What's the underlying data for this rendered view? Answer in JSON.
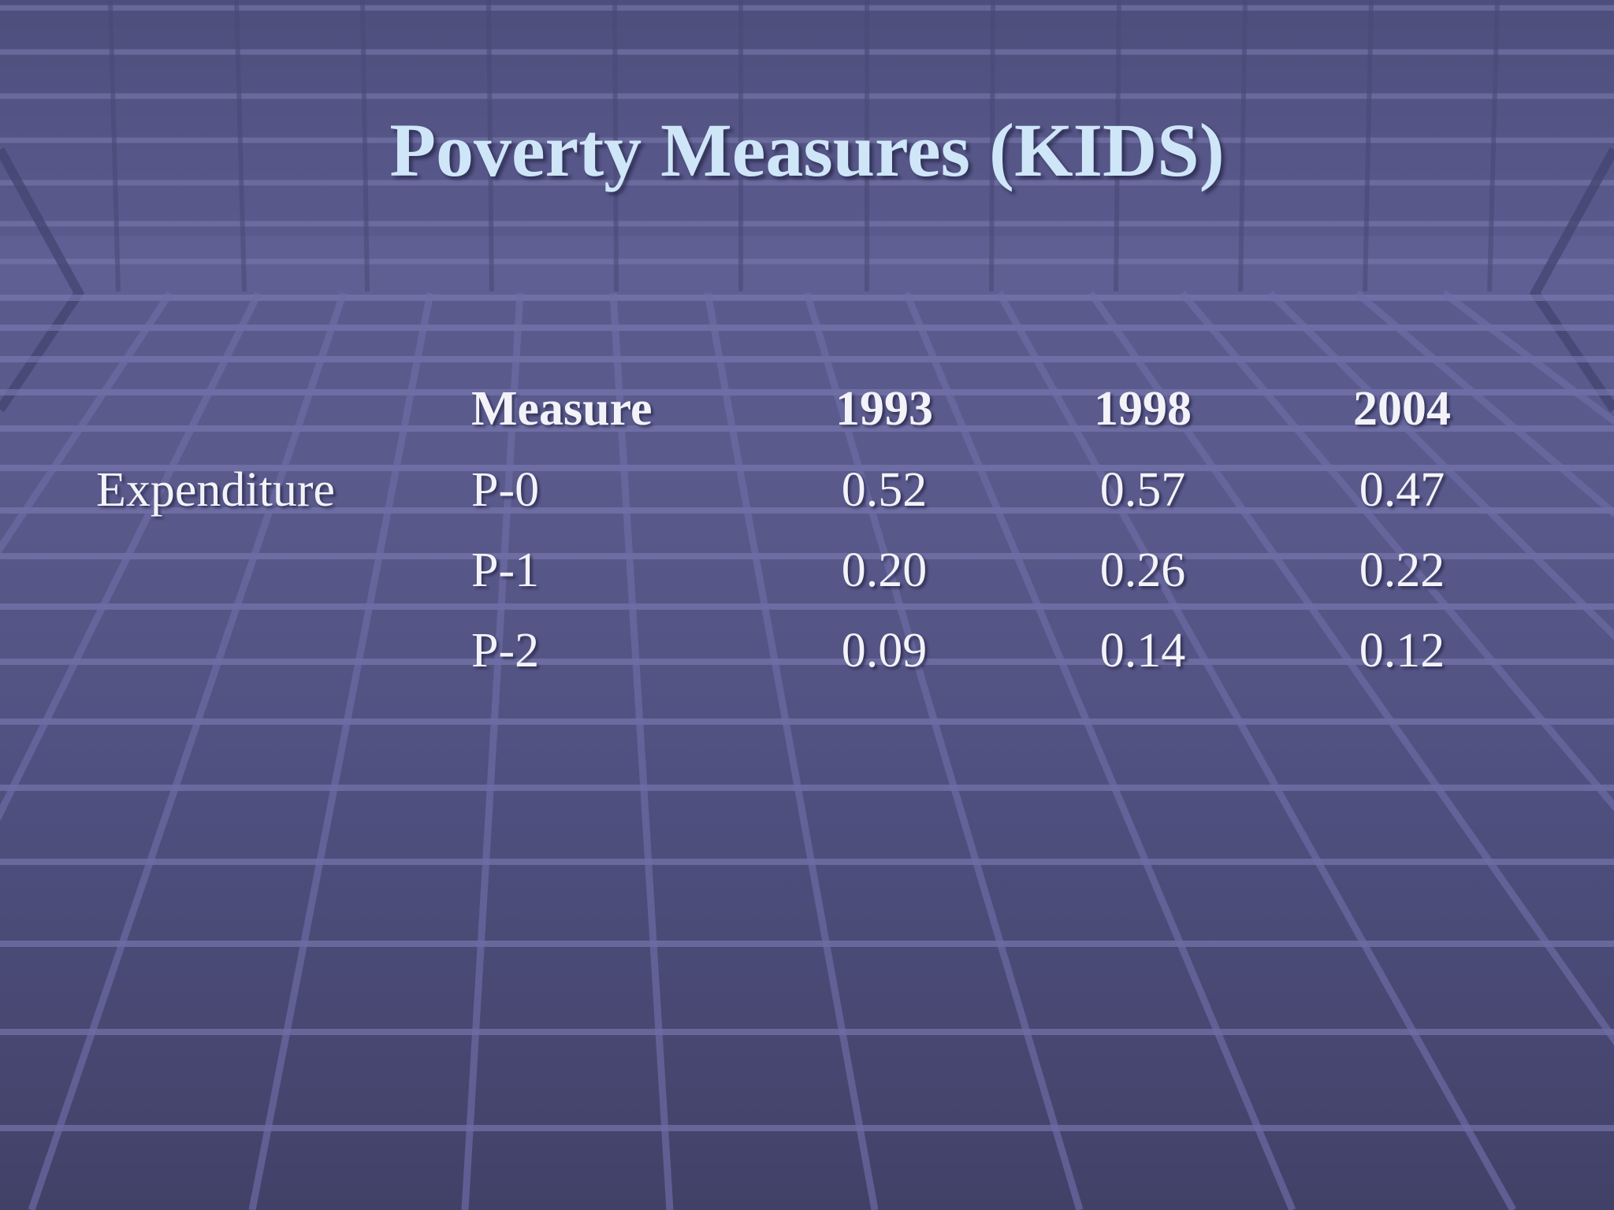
{
  "slide": {
    "title": "Poverty Measures (KIDS)"
  },
  "table": {
    "headers": {
      "measure": "Measure",
      "y1993": "1993",
      "y1998": "1998",
      "y2004": "2004"
    },
    "group_label": "Expenditure",
    "rows": [
      {
        "measure": "P-0",
        "y1993": "0.52",
        "y1998": "0.57",
        "y2004": "0.47"
      },
      {
        "measure": "P-1",
        "y1993": "0.20",
        "y1998": "0.26",
        "y2004": "0.22"
      },
      {
        "measure": "P-2",
        "y1993": "0.09",
        "y1998": "0.14",
        "y2004": "0.12"
      }
    ]
  },
  "colors": {
    "title": "#cfe6f8",
    "text": "#f2f2f8",
    "background": "#56568a",
    "grid_line": "#7e7eb4"
  }
}
